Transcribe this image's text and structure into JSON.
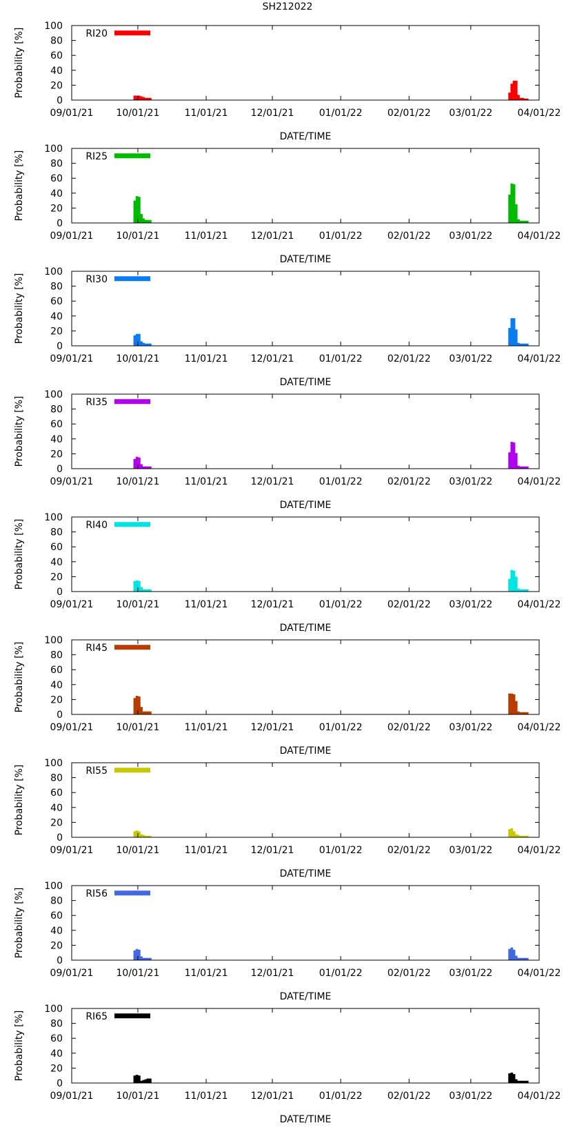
{
  "figure_title": "SH212022",
  "x_tick_labels": [
    "09/01/21",
    "10/01/21",
    "11/01/21",
    "12/01/21",
    "01/01/22",
    "02/01/22",
    "03/01/22",
    "04/01/22"
  ],
  "chart_data": [
    {
      "type": "bar",
      "title": "RI20",
      "legend": "RI20",
      "color": "#ff0000",
      "xlabel": "DATE/TIME",
      "ylabel": "Probability [%]",
      "ylim": [
        0,
        100
      ],
      "yticks": [
        0,
        20,
        40,
        60,
        80,
        100
      ],
      "xlim_days": [
        0,
        212
      ],
      "bars": [
        {
          "day": 28,
          "value": 6
        },
        {
          "day": 29,
          "value": 6
        },
        {
          "day": 30,
          "value": 6
        },
        {
          "day": 31,
          "value": 5
        },
        {
          "day": 32,
          "value": 4
        },
        {
          "day": 33,
          "value": 3
        },
        {
          "day": 34,
          "value": 3
        },
        {
          "day": 35,
          "value": 3
        },
        {
          "day": 198,
          "value": 10
        },
        {
          "day": 199,
          "value": 22
        },
        {
          "day": 200,
          "value": 26
        },
        {
          "day": 201,
          "value": 26
        },
        {
          "day": 202,
          "value": 7
        },
        {
          "day": 203,
          "value": 3
        },
        {
          "day": 204,
          "value": 3
        },
        {
          "day": 205,
          "value": 2
        },
        {
          "day": 206,
          "value": 2
        }
      ]
    },
    {
      "type": "bar",
      "title": "RI25",
      "legend": "RI25",
      "color": "#00bb00",
      "xlabel": "DATE/TIME",
      "ylabel": "Probability [%]",
      "ylim": [
        0,
        100
      ],
      "yticks": [
        0,
        20,
        40,
        60,
        80,
        100
      ],
      "xlim_days": [
        0,
        212
      ],
      "bars": [
        {
          "day": 28,
          "value": 30
        },
        {
          "day": 29,
          "value": 36
        },
        {
          "day": 30,
          "value": 35
        },
        {
          "day": 31,
          "value": 12
        },
        {
          "day": 32,
          "value": 6
        },
        {
          "day": 33,
          "value": 4
        },
        {
          "day": 34,
          "value": 4
        },
        {
          "day": 35,
          "value": 4
        },
        {
          "day": 198,
          "value": 38
        },
        {
          "day": 199,
          "value": 53
        },
        {
          "day": 200,
          "value": 52
        },
        {
          "day": 201,
          "value": 25
        },
        {
          "day": 202,
          "value": 5
        },
        {
          "day": 203,
          "value": 3
        },
        {
          "day": 204,
          "value": 3
        },
        {
          "day": 205,
          "value": 3
        },
        {
          "day": 206,
          "value": 3
        }
      ]
    },
    {
      "type": "bar",
      "title": "RI30",
      "legend": "RI30",
      "color": "#0a7cf2",
      "xlabel": "DATE/TIME",
      "ylabel": "Probability [%]",
      "ylim": [
        0,
        100
      ],
      "yticks": [
        0,
        20,
        40,
        60,
        80,
        100
      ],
      "xlim_days": [
        0,
        212
      ],
      "bars": [
        {
          "day": 28,
          "value": 14
        },
        {
          "day": 29,
          "value": 16
        },
        {
          "day": 30,
          "value": 16
        },
        {
          "day": 31,
          "value": 6
        },
        {
          "day": 32,
          "value": 4
        },
        {
          "day": 33,
          "value": 3
        },
        {
          "day": 34,
          "value": 3
        },
        {
          "day": 35,
          "value": 3
        },
        {
          "day": 198,
          "value": 24
        },
        {
          "day": 199,
          "value": 37
        },
        {
          "day": 200,
          "value": 37
        },
        {
          "day": 201,
          "value": 22
        },
        {
          "day": 202,
          "value": 4
        },
        {
          "day": 203,
          "value": 3
        },
        {
          "day": 204,
          "value": 3
        },
        {
          "day": 205,
          "value": 3
        },
        {
          "day": 206,
          "value": 3
        }
      ]
    },
    {
      "type": "bar",
      "title": "RI35",
      "legend": "RI35",
      "color": "#b000ee",
      "xlabel": "DATE/TIME",
      "ylabel": "Probability [%]",
      "ylim": [
        0,
        100
      ],
      "yticks": [
        0,
        20,
        40,
        60,
        80,
        100
      ],
      "xlim_days": [
        0,
        212
      ],
      "bars": [
        {
          "day": 28,
          "value": 13
        },
        {
          "day": 29,
          "value": 16
        },
        {
          "day": 30,
          "value": 15
        },
        {
          "day": 31,
          "value": 6
        },
        {
          "day": 32,
          "value": 3
        },
        {
          "day": 33,
          "value": 3
        },
        {
          "day": 34,
          "value": 3
        },
        {
          "day": 35,
          "value": 3
        },
        {
          "day": 198,
          "value": 22
        },
        {
          "day": 199,
          "value": 36
        },
        {
          "day": 200,
          "value": 35
        },
        {
          "day": 201,
          "value": 21
        },
        {
          "day": 202,
          "value": 4
        },
        {
          "day": 203,
          "value": 3
        },
        {
          "day": 204,
          "value": 3
        },
        {
          "day": 205,
          "value": 3
        },
        {
          "day": 206,
          "value": 3
        }
      ]
    },
    {
      "type": "bar",
      "title": "RI40",
      "legend": "RI40",
      "color": "#00e4e4",
      "xlabel": "DATE/TIME",
      "ylabel": "Probability [%]",
      "ylim": [
        0,
        100
      ],
      "yticks": [
        0,
        20,
        40,
        60,
        80,
        100
      ],
      "xlim_days": [
        0,
        212
      ],
      "bars": [
        {
          "day": 28,
          "value": 14
        },
        {
          "day": 29,
          "value": 15
        },
        {
          "day": 30,
          "value": 14
        },
        {
          "day": 31,
          "value": 6
        },
        {
          "day": 32,
          "value": 3
        },
        {
          "day": 33,
          "value": 3
        },
        {
          "day": 34,
          "value": 3
        },
        {
          "day": 35,
          "value": 3
        },
        {
          "day": 198,
          "value": 17
        },
        {
          "day": 199,
          "value": 29
        },
        {
          "day": 200,
          "value": 28
        },
        {
          "day": 201,
          "value": 20
        },
        {
          "day": 202,
          "value": 4
        },
        {
          "day": 203,
          "value": 3
        },
        {
          "day": 204,
          "value": 3
        },
        {
          "day": 205,
          "value": 3
        },
        {
          "day": 206,
          "value": 3
        }
      ]
    },
    {
      "type": "bar",
      "title": "RI45",
      "legend": "RI45",
      "color": "#b83c00",
      "xlabel": "DATE/TIME",
      "ylabel": "Probability [%]",
      "ylim": [
        0,
        100
      ],
      "yticks": [
        0,
        20,
        40,
        60,
        80,
        100
      ],
      "xlim_days": [
        0,
        212
      ],
      "bars": [
        {
          "day": 28,
          "value": 22
        },
        {
          "day": 29,
          "value": 25
        },
        {
          "day": 30,
          "value": 24
        },
        {
          "day": 31,
          "value": 10
        },
        {
          "day": 32,
          "value": 4
        },
        {
          "day": 33,
          "value": 4
        },
        {
          "day": 34,
          "value": 4
        },
        {
          "day": 35,
          "value": 4
        },
        {
          "day": 198,
          "value": 28
        },
        {
          "day": 199,
          "value": 28
        },
        {
          "day": 200,
          "value": 27
        },
        {
          "day": 201,
          "value": 18
        },
        {
          "day": 202,
          "value": 4
        },
        {
          "day": 203,
          "value": 3
        },
        {
          "day": 204,
          "value": 3
        },
        {
          "day": 205,
          "value": 3
        },
        {
          "day": 206,
          "value": 3
        }
      ]
    },
    {
      "type": "bar",
      "title": "RI55",
      "legend": "RI55",
      "color": "#c8c800",
      "xlabel": "DATE/TIME",
      "ylabel": "Probability [%]",
      "ylim": [
        0,
        100
      ],
      "yticks": [
        0,
        20,
        40,
        60,
        80,
        100
      ],
      "xlim_days": [
        0,
        212
      ],
      "bars": [
        {
          "day": 28,
          "value": 8
        },
        {
          "day": 29,
          "value": 9
        },
        {
          "day": 30,
          "value": 8
        },
        {
          "day": 31,
          "value": 4
        },
        {
          "day": 32,
          "value": 3
        },
        {
          "day": 33,
          "value": 2
        },
        {
          "day": 34,
          "value": 2
        },
        {
          "day": 35,
          "value": 2
        },
        {
          "day": 198,
          "value": 11
        },
        {
          "day": 199,
          "value": 12
        },
        {
          "day": 200,
          "value": 8
        },
        {
          "day": 201,
          "value": 4
        },
        {
          "day": 202,
          "value": 3
        },
        {
          "day": 203,
          "value": 2
        },
        {
          "day": 204,
          "value": 2
        },
        {
          "day": 205,
          "value": 2
        },
        {
          "day": 206,
          "value": 2
        }
      ]
    },
    {
      "type": "bar",
      "title": "RI56",
      "legend": "RI56",
      "color": "#4169e1",
      "xlabel": "DATE/TIME",
      "ylabel": "Probability [%]",
      "ylim": [
        0,
        100
      ],
      "yticks": [
        0,
        20,
        40,
        60,
        80,
        100
      ],
      "xlim_days": [
        0,
        212
      ],
      "bars": [
        {
          "day": 28,
          "value": 13
        },
        {
          "day": 29,
          "value": 15
        },
        {
          "day": 30,
          "value": 14
        },
        {
          "day": 31,
          "value": 5
        },
        {
          "day": 32,
          "value": 3
        },
        {
          "day": 33,
          "value": 3
        },
        {
          "day": 34,
          "value": 3
        },
        {
          "day": 35,
          "value": 3
        },
        {
          "day": 198,
          "value": 15
        },
        {
          "day": 199,
          "value": 17
        },
        {
          "day": 200,
          "value": 14
        },
        {
          "day": 201,
          "value": 6
        },
        {
          "day": 202,
          "value": 3
        },
        {
          "day": 203,
          "value": 3
        },
        {
          "day": 204,
          "value": 3
        },
        {
          "day": 205,
          "value": 3
        },
        {
          "day": 206,
          "value": 3
        }
      ]
    },
    {
      "type": "bar",
      "title": "RI65",
      "legend": "RI65",
      "color": "#000000",
      "xlabel": "DATE/TIME",
      "ylabel": "Probability [%]",
      "ylim": [
        0,
        100
      ],
      "yticks": [
        0,
        20,
        40,
        60,
        80,
        100
      ],
      "xlim_days": [
        0,
        212
      ],
      "bars": [
        {
          "day": 28,
          "value": 10
        },
        {
          "day": 29,
          "value": 11
        },
        {
          "day": 30,
          "value": 10
        },
        {
          "day": 31,
          "value": 3
        },
        {
          "day": 32,
          "value": 4
        },
        {
          "day": 33,
          "value": 5
        },
        {
          "day": 34,
          "value": 6
        },
        {
          "day": 35,
          "value": 6
        },
        {
          "day": 198,
          "value": 13
        },
        {
          "day": 199,
          "value": 14
        },
        {
          "day": 200,
          "value": 12
        },
        {
          "day": 201,
          "value": 5
        },
        {
          "day": 202,
          "value": 3
        },
        {
          "day": 203,
          "value": 3
        },
        {
          "day": 204,
          "value": 3
        },
        {
          "day": 205,
          "value": 3
        },
        {
          "day": 206,
          "value": 3
        }
      ]
    }
  ]
}
